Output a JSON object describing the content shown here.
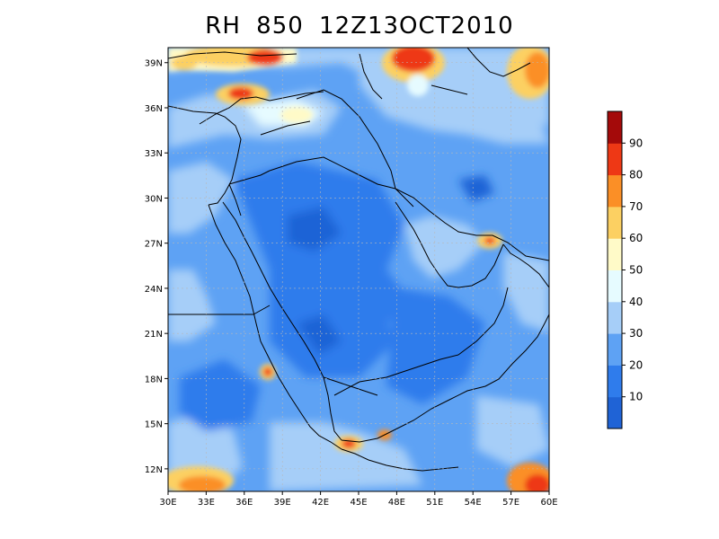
{
  "title": "RH 850 12Z13OCT2010",
  "map": {
    "lon_range": [
      30,
      60
    ],
    "lat_range": [
      10.5,
      40
    ],
    "lon_ticks": [
      {
        "value": 30,
        "label": "30E"
      },
      {
        "value": 33,
        "label": "33E"
      },
      {
        "value": 36,
        "label": "36E"
      },
      {
        "value": 39,
        "label": "39E"
      },
      {
        "value": 42,
        "label": "42E"
      },
      {
        "value": 45,
        "label": "45E"
      },
      {
        "value": 48,
        "label": "48E"
      },
      {
        "value": 51,
        "label": "51E"
      },
      {
        "value": 54,
        "label": "54E"
      },
      {
        "value": 57,
        "label": "57E"
      },
      {
        "value": 60,
        "label": "60E"
      }
    ],
    "lat_ticks": [
      {
        "value": 39,
        "label": "39N"
      },
      {
        "value": 36,
        "label": "36N"
      },
      {
        "value": 33,
        "label": "33N"
      },
      {
        "value": 30,
        "label": "30N"
      },
      {
        "value": 27,
        "label": "27N"
      },
      {
        "value": 24,
        "label": "24N"
      },
      {
        "value": 21,
        "label": "21N"
      },
      {
        "value": 18,
        "label": "18N"
      },
      {
        "value": 15,
        "label": "15N"
      },
      {
        "value": 12,
        "label": "12N"
      }
    ],
    "field": "relative humidity at 850 hPa (%)"
  },
  "colorbar": {
    "levels": [
      {
        "min": 0,
        "max": 10,
        "color": "#1f63d6"
      },
      {
        "min": 10,
        "max": 20,
        "color": "#2f7cec"
      },
      {
        "min": 20,
        "max": 30,
        "color": "#5ea2f4"
      },
      {
        "min": 30,
        "max": 40,
        "color": "#a6cef8"
      },
      {
        "min": 40,
        "max": 50,
        "color": "#e6fbff"
      },
      {
        "min": 50,
        "max": 60,
        "color": "#fffac8"
      },
      {
        "min": 60,
        "max": 70,
        "color": "#fcd062"
      },
      {
        "min": 70,
        "max": 80,
        "color": "#fb8f26"
      },
      {
        "min": 80,
        "max": 90,
        "color": "#ee3815"
      },
      {
        "min": 90,
        "max": 100,
        "color": "#a40a0a"
      }
    ],
    "tick_labels": [
      "10",
      "20",
      "30",
      "40",
      "50",
      "60",
      "70",
      "80",
      "90"
    ]
  }
}
